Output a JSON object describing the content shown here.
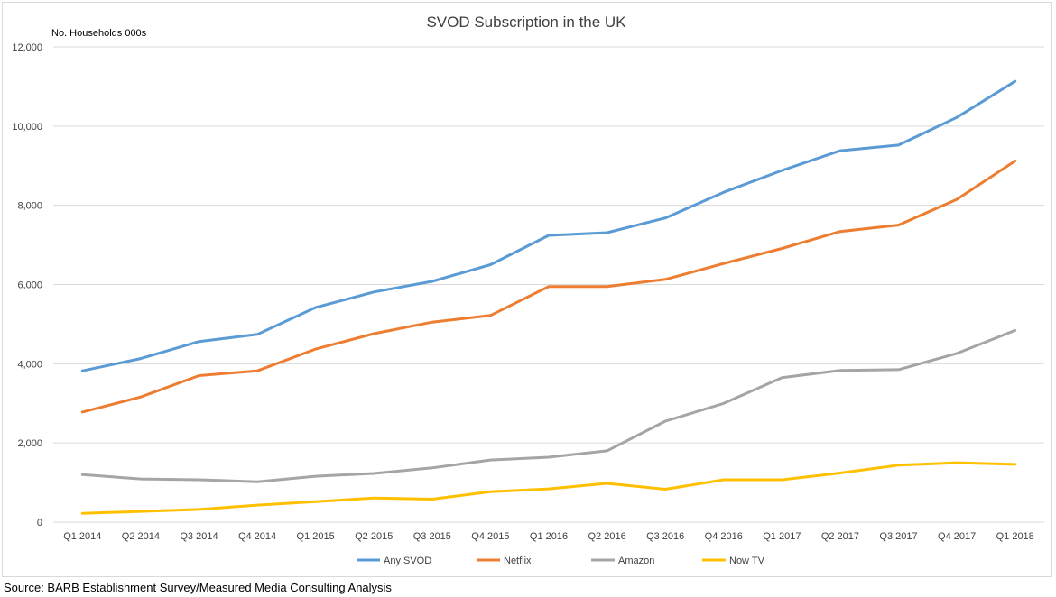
{
  "chart_data": {
    "type": "line",
    "title": "SVOD Subscription in the UK",
    "ylabel": "No. Households 000s",
    "xlabel": "",
    "ylim": [
      0,
      12000
    ],
    "yticks": [
      0,
      2000,
      4000,
      6000,
      8000,
      10000,
      12000
    ],
    "ytick_labels": [
      "0",
      "2,000",
      "4,000",
      "6,000",
      "8,000",
      "10,000",
      "12,000"
    ],
    "grid": true,
    "legend_position": "bottom",
    "categories": [
      "Q1 2014",
      "Q2 2014",
      "Q3 2014",
      "Q4 2014",
      "Q1 2015",
      "Q2 2015",
      "Q3 2015",
      "Q4 2015",
      "Q1 2016",
      "Q2 2016",
      "Q3 2016",
      "Q4 2016",
      "Q1 2017",
      "Q2 2017",
      "Q3 2017",
      "Q4 2017",
      "Q1 2018"
    ],
    "series": [
      {
        "name": "Any SVOD",
        "color": "#5b9bd5",
        "values": [
          3820,
          4130,
          4560,
          4740,
          5420,
          5810,
          6080,
          6500,
          7240,
          7310,
          7680,
          8330,
          8880,
          9380,
          9520,
          10220,
          11130
        ]
      },
      {
        "name": "Netflix",
        "color": "#ed7d31",
        "values": [
          2780,
          3160,
          3700,
          3820,
          4370,
          4760,
          5050,
          5220,
          5950,
          5950,
          6130,
          6530,
          6910,
          7340,
          7500,
          8150,
          9120
        ]
      },
      {
        "name": "Amazon",
        "color": "#a5a5a5",
        "values": [
          1200,
          1090,
          1070,
          1020,
          1160,
          1230,
          1370,
          1570,
          1640,
          1800,
          2550,
          3000,
          3650,
          3830,
          3850,
          4260,
          4840
        ]
      },
      {
        "name": "Now TV",
        "color": "#ffc000",
        "values": [
          220,
          270,
          320,
          430,
          520,
          610,
          580,
          770,
          840,
          980,
          830,
          1070,
          1070,
          1240,
          1440,
          1500,
          1460
        ]
      }
    ]
  },
  "source": "Source: BARB Establishment Survey/Measured Media Consulting Analysis"
}
